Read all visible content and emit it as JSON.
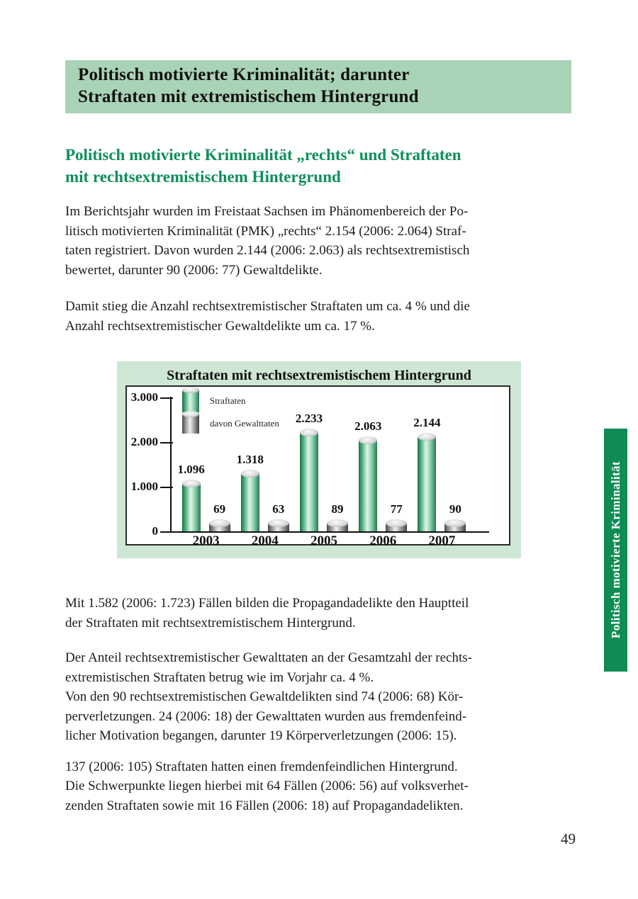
{
  "banner": {
    "title": "Politisch motivierte Kriminalität; darunter\nStraftaten mit extremistischem Hintergrund"
  },
  "section": {
    "heading": "Politisch motivierte Kriminalität „rechts“ und Straftaten\nmit rechtsextremistischem Hintergrund"
  },
  "paragraphs": {
    "p1": "Im Berichtsjahr wurden im Freistaat Sachsen im Phänomenbereich der Po-\nlitisch motivierten Kriminalität (PMK) „rechts“ 2.154 (2006: 2.064) Straf-\ntaten registriert. Davon wurden 2.144 (2006: 2.063) als rechtsextremistisch\nbewertet, darunter 90 (2006: 77) Gewaltdelikte.",
    "p2": "Damit stieg die Anzahl rechtsextremistischer Straftaten um ca. 4 % und die\nAnzahl rechtsextremistischer Gewaltdelikte um ca. 17 %.",
    "p3": "Mit 1.582 (2006: 1.723) Fällen bilden die Propagandadelikte den Hauptteil\nder Straftaten mit rechtsextremistischem Hintergrund.",
    "p4": "Der Anteil rechtsextremistischer Gewalttaten an der Gesamtzahl der rechts-\nextremistischen Straftaten betrug wie im Vorjahr ca. 4 %.\nVon den 90 rechtsextremistischen Gewaltdelikten sind 74 (2006: 68) Kör-\nperverletzungen. 24 (2006: 18) der Gewalttaten wurden aus fremdenfeind-\nlicher Motivation begangen, darunter 19 Körperverletzungen (2006: 15).",
    "p5": "137 (2006: 105) Straftaten hatten einen fremdenfeindlichen Hintergrund.\nDie Schwerpunkte liegen hierbei mit 64 Fällen (2006: 56) auf volksverhet-\nzenden Straftaten sowie mit 16 Fällen (2006: 18) auf Propagandadelikten."
  },
  "sidebar_tab": {
    "label": "Politisch motivierte Kriminalität"
  },
  "page": {
    "number": "49"
  },
  "colors": {
    "banner-bg": "#a9d3b6",
    "chart-bg": "#cee7d4",
    "heading-green": "#0f8f5b",
    "tab-bg": "#0e8c54"
  },
  "chart_data": {
    "type": "bar",
    "title": "Straftaten mit rechtsextremistischem Hintergrund",
    "categories": [
      "2003",
      "2004",
      "2005",
      "2006",
      "2007"
    ],
    "series": [
      {
        "name": "Straftaten",
        "key": "straftaten",
        "style": "green",
        "values": [
          1096,
          1318,
          2233,
          2063,
          2144
        ],
        "labels": [
          "1.096",
          "1.318",
          "2.233",
          "2.063",
          "2.144"
        ]
      },
      {
        "name": "davon Gewalttaten",
        "key": "gewalttaten",
        "style": "gray",
        "values": [
          69,
          63,
          89,
          77,
          90
        ],
        "labels": [
          "69",
          "63",
          "89",
          "77",
          "90"
        ]
      }
    ],
    "xlabel": "",
    "ylabel": "",
    "ylim": [
      0,
      3000
    ],
    "y_ticks": [
      {
        "value": 0,
        "label": "0"
      },
      {
        "value": 1000,
        "label": "1.000"
      },
      {
        "value": 2000,
        "label": "2.000"
      },
      {
        "value": 3000,
        "label": "3.000"
      }
    ],
    "legend_position": "top-left-inside",
    "grid": false
  }
}
